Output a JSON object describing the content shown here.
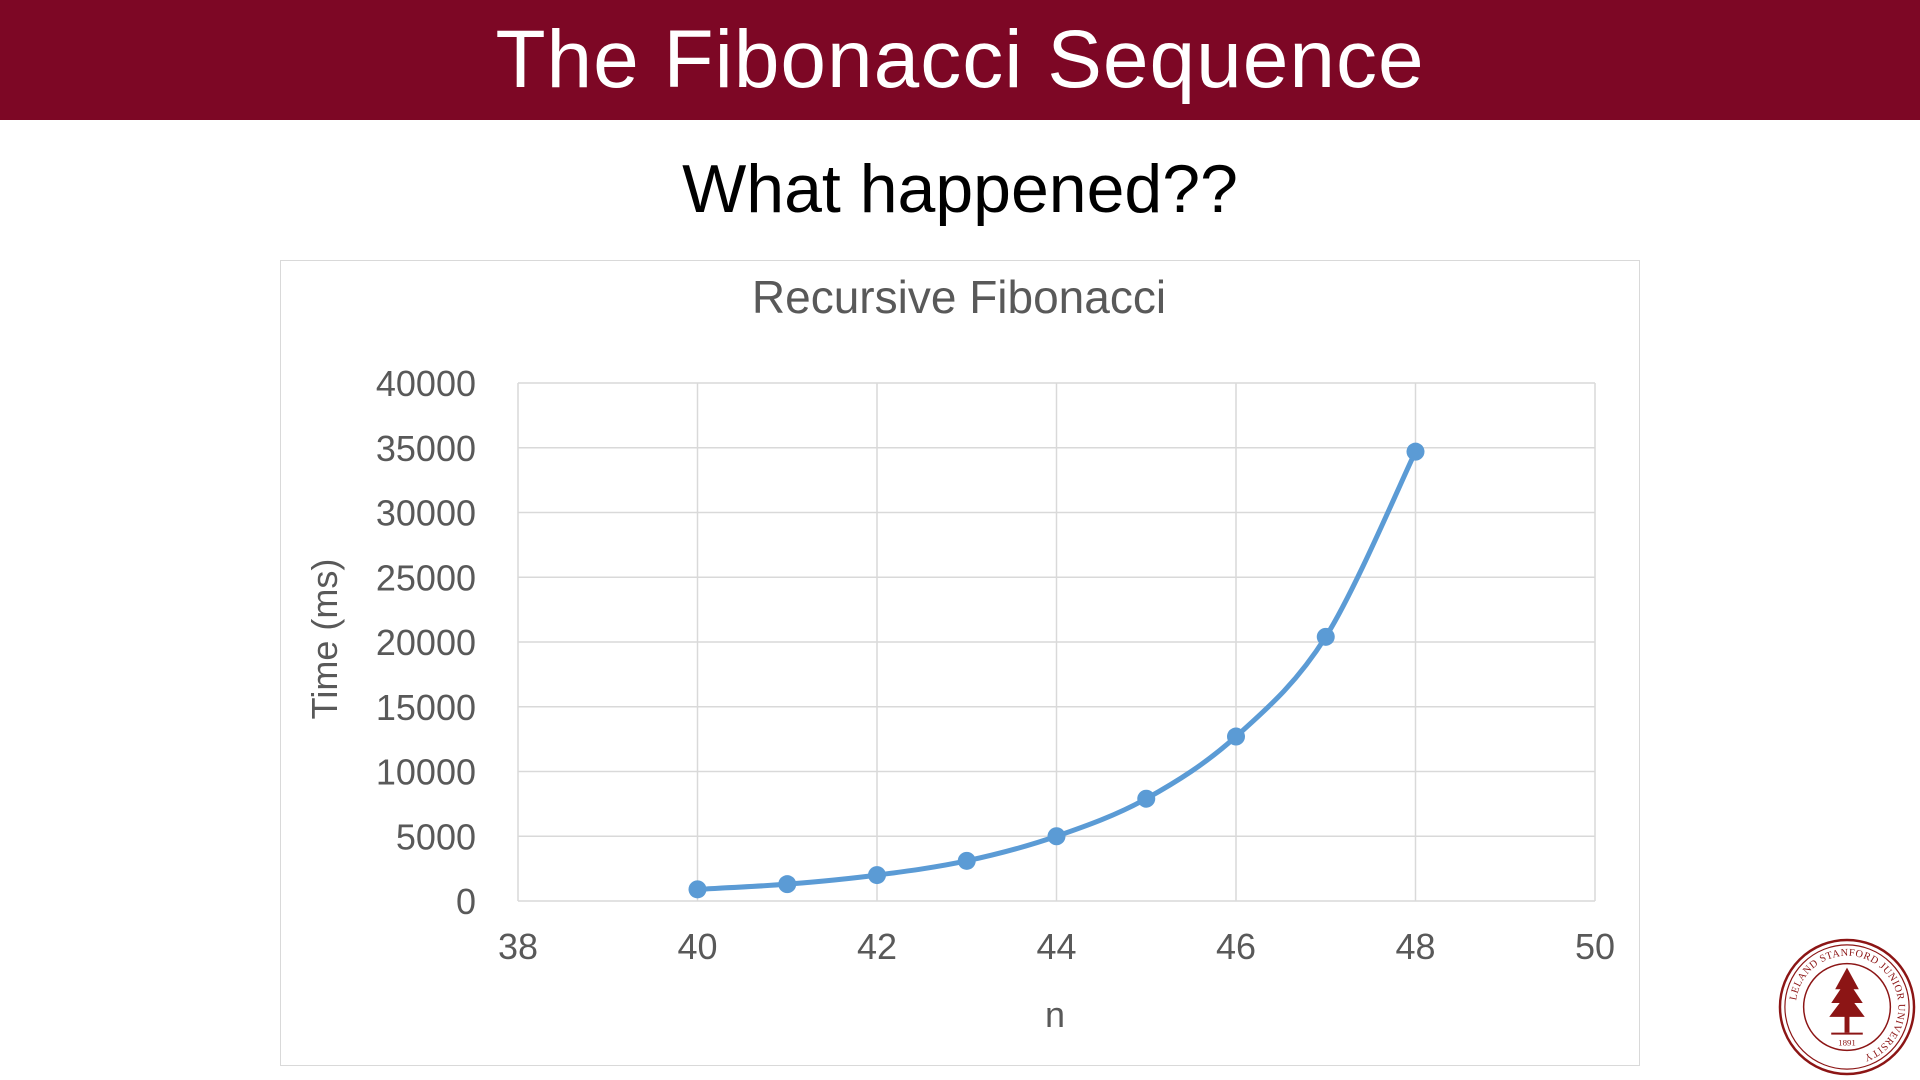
{
  "slide": {
    "title": "The Fibonacci Sequence",
    "subtitle": "What happened??"
  },
  "colors": {
    "title_bar": "#7d0725",
    "series": "#5b9bd5",
    "gridline": "#d9d9d9",
    "axis_text": "#595959",
    "seal": "#8c1515"
  },
  "seal": {
    "ring_text": "LELAND STANFORD JUNIOR UNIVERSITY",
    "year": "1891"
  },
  "chart_data": {
    "type": "scatter",
    "title": "Recursive Fibonacci",
    "xlabel": "n",
    "ylabel": "Time (ms)",
    "xlim": [
      38,
      50
    ],
    "ylim": [
      0,
      40000
    ],
    "xticks": [
      38,
      40,
      42,
      44,
      46,
      48,
      50
    ],
    "yticks": [
      0,
      5000,
      10000,
      15000,
      20000,
      25000,
      30000,
      35000,
      40000
    ],
    "grid": true,
    "smooth_line": true,
    "series": [
      {
        "x": [
          40,
          41,
          42,
          43,
          44,
          45,
          46,
          47,
          48
        ],
        "y": [
          900,
          1300,
          2000,
          3100,
          5000,
          7900,
          12700,
          20400,
          34700
        ]
      }
    ]
  }
}
